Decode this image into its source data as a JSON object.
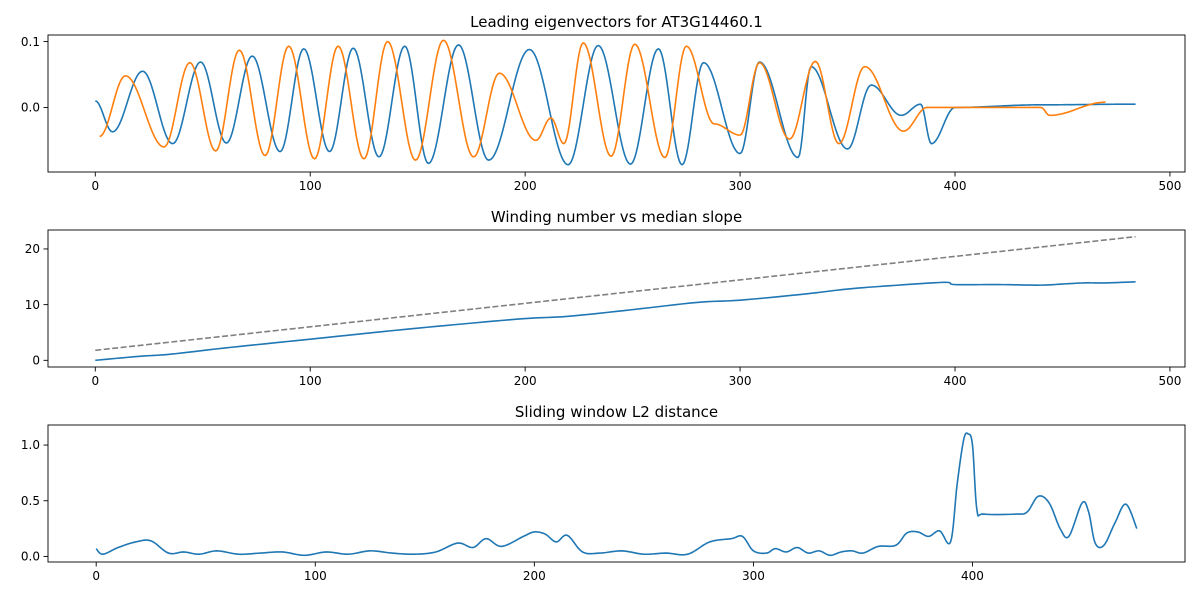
{
  "chart_data": [
    {
      "type": "line",
      "title": "Leading eigenvectors for AT3G14460.1",
      "xlabel": "",
      "ylabel": "",
      "xlim": [
        -22,
        507
      ],
      "ylim": [
        -0.098,
        0.11
      ],
      "xticks": [
        0,
        100,
        200,
        300,
        400,
        500
      ],
      "yticks": [
        0.0,
        0.1
      ],
      "ytick_labels": [
        "0.0",
        "0.1"
      ],
      "grid": false,
      "series": [
        {
          "color": "#1f77b4",
          "style": "oscillation",
          "x_range": [
            0,
            484
          ],
          "peaks": [
            [
              0,
              0.01
            ],
            [
              22,
              0.055
            ],
            [
              49,
              0.069
            ],
            [
              73,
              0.078
            ],
            [
              97,
              0.089
            ],
            [
              120,
              0.09
            ],
            [
              144,
              0.093
            ],
            [
              169,
              0.095
            ],
            [
              202,
              0.088
            ],
            [
              234,
              0.094
            ],
            [
              262,
              0.089
            ],
            [
              283,
              0.068
            ],
            [
              309,
              0.069
            ],
            [
              333,
              0.062
            ],
            [
              361,
              0.034
            ],
            [
              384,
              0.005
            ],
            [
              400,
              0.0
            ],
            [
              440,
              0.004
            ],
            [
              484,
              0.005
            ]
          ],
          "troughs": [
            [
              8,
              -0.037
            ],
            [
              36,
              -0.055
            ],
            [
              61,
              -0.054
            ],
            [
              86,
              -0.067
            ],
            [
              109,
              -0.067
            ],
            [
              132,
              -0.075
            ],
            [
              155,
              -0.085
            ],
            [
              183,
              -0.08
            ],
            [
              220,
              -0.087
            ],
            [
              249,
              -0.086
            ],
            [
              273,
              -0.087
            ],
            [
              300,
              -0.07
            ],
            [
              327,
              -0.076
            ],
            [
              350,
              -0.063
            ],
            [
              375,
              -0.012
            ],
            [
              389,
              -0.055
            ]
          ]
        },
        {
          "color": "#ff7f0e",
          "style": "oscillation",
          "x_range": [
            0,
            484
          ],
          "peaks": [
            [
              14,
              0.048
            ],
            [
              44,
              0.068
            ],
            [
              67,
              0.087
            ],
            [
              90,
              0.093
            ],
            [
              113,
              0.093
            ],
            [
              136,
              0.1
            ],
            [
              162,
              0.102
            ],
            [
              188,
              0.052
            ],
            [
              212,
              -0.016
            ],
            [
              227,
              0.098
            ],
            [
              251,
              0.096
            ],
            [
              275,
              0.093
            ],
            [
              309,
              0.068
            ],
            [
              335,
              0.07
            ],
            [
              358,
              0.062
            ],
            [
              387,
              0.0
            ],
            [
              440,
              0.0
            ],
            [
              470,
              0.008
            ]
          ],
          "troughs": [
            [
              2,
              -0.044
            ],
            [
              32,
              -0.06
            ],
            [
              56,
              -0.066
            ],
            [
              79,
              -0.073
            ],
            [
              102,
              -0.078
            ],
            [
              125,
              -0.078
            ],
            [
              149,
              -0.08
            ],
            [
              176,
              -0.075
            ],
            [
              205,
              -0.05
            ],
            [
              218,
              -0.055
            ],
            [
              240,
              -0.074
            ],
            [
              265,
              -0.076
            ],
            [
              288,
              -0.025
            ],
            [
              300,
              -0.042
            ],
            [
              323,
              -0.048
            ],
            [
              346,
              -0.055
            ],
            [
              376,
              -0.036
            ],
            [
              444,
              -0.012
            ]
          ]
        }
      ]
    },
    {
      "type": "line",
      "title": "Winding number vs median slope",
      "xlabel": "",
      "ylabel": "",
      "xlim": [
        -22,
        507
      ],
      "ylim": [
        -1.2,
        23.4
      ],
      "xticks": [
        0,
        100,
        200,
        300,
        400,
        500
      ],
      "yticks": [
        0,
        10,
        20
      ],
      "ytick_labels": [
        "0",
        "10",
        "20"
      ],
      "grid": false,
      "series": [
        {
          "color": "#1f77b4",
          "style": "solid",
          "x": [
            0,
            20,
            35,
            60,
            90,
            120,
            140,
            170,
            200,
            220,
            250,
            280,
            300,
            330,
            350,
            370,
            395,
            400,
            420,
            440,
            450,
            460,
            470,
            484
          ],
          "y": [
            0,
            0.7,
            1.1,
            2.2,
            3.4,
            4.6,
            5.4,
            6.5,
            7.5,
            7.9,
            9.1,
            10.4,
            10.8,
            11.9,
            12.8,
            13.4,
            14.0,
            13.6,
            13.6,
            13.5,
            13.7,
            13.9,
            13.9,
            14.1
          ]
        },
        {
          "color": "#808080",
          "style": "dashed",
          "x": [
            0,
            484
          ],
          "y": [
            1.8,
            22.2
          ]
        }
      ]
    },
    {
      "type": "line",
      "title": "Sliding window L2 distance",
      "xlabel": "",
      "ylabel": "",
      "xlim": [
        -22,
        497
      ],
      "ylim": [
        -0.05,
        1.18
      ],
      "xticks": [
        0,
        100,
        200,
        300,
        400
      ],
      "yticks": [
        0.0,
        0.5,
        1.0
      ],
      "ytick_labels": [
        "0.0",
        "0.5",
        "1.0"
      ],
      "grid": false,
      "series": [
        {
          "color": "#1f77b4",
          "style": "solid",
          "x": [
            0,
            3,
            10,
            18,
            25,
            33,
            40,
            47,
            55,
            65,
            75,
            85,
            95,
            105,
            115,
            125,
            135,
            145,
            155,
            165,
            172,
            178,
            185,
            195,
            200,
            205,
            210,
            215,
            222,
            230,
            240,
            250,
            260,
            270,
            280,
            290,
            295,
            300,
            306,
            310,
            315,
            320,
            325,
            330,
            335,
            340,
            345,
            350,
            357,
            365,
            370,
            375,
            380,
            385,
            390,
            393,
            396,
            398,
            400,
            402,
            405,
            420,
            425,
            430,
            435,
            440,
            444,
            450,
            453,
            456,
            460,
            465,
            470,
            475
          ],
          "y": [
            0.07,
            0.02,
            0.08,
            0.13,
            0.14,
            0.03,
            0.04,
            0.02,
            0.05,
            0.02,
            0.03,
            0.04,
            0.01,
            0.04,
            0.02,
            0.05,
            0.03,
            0.02,
            0.04,
            0.12,
            0.08,
            0.16,
            0.09,
            0.18,
            0.22,
            0.2,
            0.13,
            0.19,
            0.04,
            0.03,
            0.05,
            0.02,
            0.03,
            0.02,
            0.13,
            0.16,
            0.18,
            0.05,
            0.03,
            0.07,
            0.04,
            0.08,
            0.03,
            0.05,
            0.01,
            0.04,
            0.05,
            0.03,
            0.09,
            0.1,
            0.21,
            0.22,
            0.18,
            0.23,
            0.13,
            0.65,
            1.05,
            1.1,
            1.0,
            0.42,
            0.38,
            0.38,
            0.4,
            0.54,
            0.48,
            0.25,
            0.18,
            0.48,
            0.4,
            0.12,
            0.1,
            0.3,
            0.47,
            0.25
          ]
        }
      ]
    }
  ]
}
